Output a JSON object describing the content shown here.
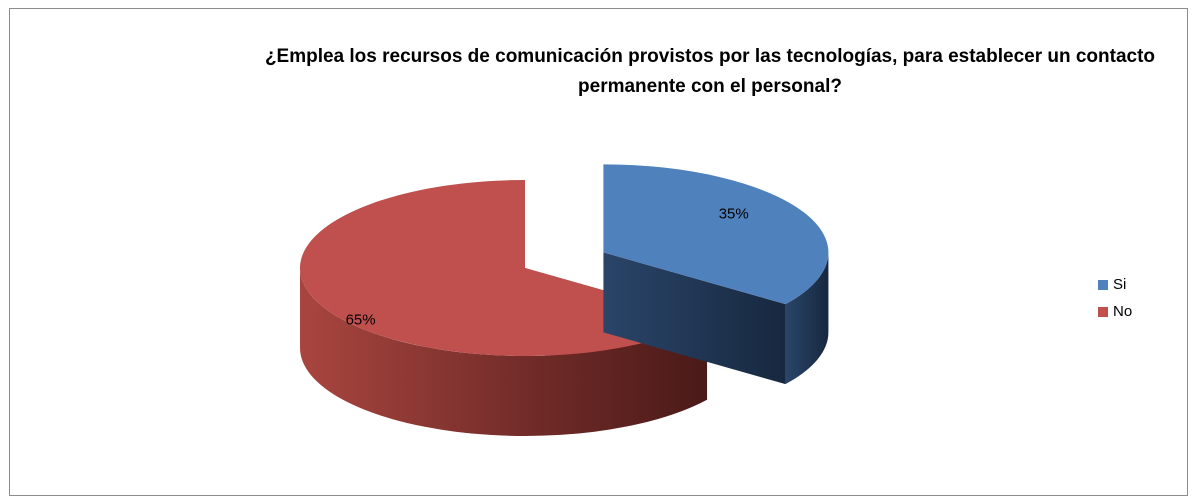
{
  "chart_data": {
    "type": "pie3d",
    "title": "¿Emplea los recursos de comunicación provistos por las tecnologías, para establecer un contacto permanente con el personal?",
    "categories": [
      "Si",
      "No"
    ],
    "values": [
      35,
      65
    ],
    "value_labels": [
      "35%",
      "65%"
    ],
    "colors": [
      "#4f81bd",
      "#c0504d"
    ],
    "legend": "right"
  }
}
